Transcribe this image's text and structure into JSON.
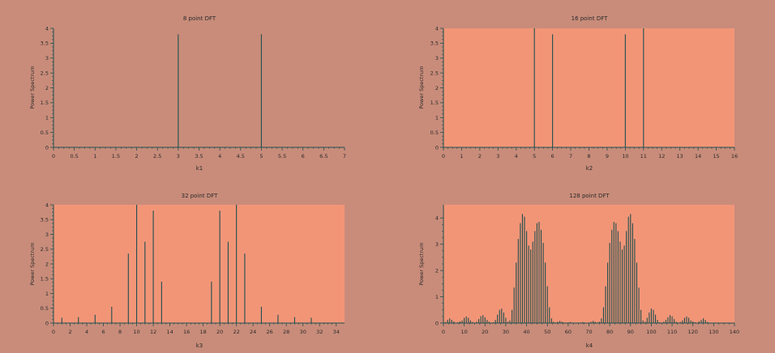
{
  "colors": {
    "figure_bg": "#c98c7a",
    "plot_bg_plain": "#c98c7a",
    "plot_bg_filled": "#f29577",
    "axis": "#1f4f4f",
    "stem": "#1f4f4f"
  },
  "chart_data": [
    {
      "type": "bar",
      "title": "8 point DFT",
      "xlabel": "k1",
      "ylabel": "Power Spectrum",
      "xlim": [
        0,
        7
      ],
      "ylim": [
        0,
        4
      ],
      "xticks": [
        0,
        0.5,
        1,
        1.5,
        2,
        2.5,
        3,
        3.5,
        4,
        4.5,
        5,
        5.5,
        6,
        6.5,
        7
      ],
      "yticks": [
        0,
        0.5,
        1,
        1.5,
        2,
        2.5,
        3,
        3.5,
        4
      ],
      "filled_background": false,
      "x": [
        0,
        1,
        2,
        3,
        4,
        5,
        6,
        7
      ],
      "values": [
        0,
        0,
        0,
        3.8,
        0,
        3.8,
        0,
        0
      ]
    },
    {
      "type": "bar",
      "title": "16 point DFT",
      "xlabel": "k2",
      "ylabel": "Power Spectrum",
      "xlim": [
        0,
        16
      ],
      "ylim": [
        0,
        4
      ],
      "xticks": [
        0,
        1,
        2,
        3,
        4,
        5,
        6,
        7,
        8,
        9,
        10,
        11,
        12,
        13,
        14,
        15,
        16
      ],
      "yticks": [
        0,
        0.5,
        1,
        1.5,
        2,
        2.5,
        3,
        3.5,
        4
      ],
      "filled_background": true,
      "x": [
        0,
        1,
        2,
        3,
        4,
        5,
        6,
        7,
        8,
        9,
        10,
        11,
        12,
        13,
        14,
        15
      ],
      "values": [
        0,
        0,
        0,
        0,
        0,
        4.0,
        3.8,
        0,
        0,
        0,
        3.8,
        4.0,
        0,
        0,
        0,
        0
      ]
    },
    {
      "type": "bar",
      "title": "32 point DFT",
      "xlabel": "k3",
      "ylabel": "Power Spectrum",
      "xlim": [
        0,
        35
      ],
      "ylim": [
        0,
        4
      ],
      "xticks": [
        0,
        2,
        4,
        6,
        8,
        10,
        12,
        14,
        16,
        18,
        20,
        22,
        24,
        26,
        28,
        30,
        32,
        34
      ],
      "yticks": [
        0,
        0.5,
        1,
        1.5,
        2,
        2.5,
        3,
        3.5,
        4
      ],
      "filled_background": true,
      "x": [
        0,
        1,
        2,
        3,
        4,
        5,
        6,
        7,
        8,
        9,
        10,
        11,
        12,
        13,
        14,
        15,
        16,
        17,
        18,
        19,
        20,
        21,
        22,
        23,
        24,
        25,
        26,
        27,
        28,
        29,
        30,
        31
      ],
      "values": [
        0,
        0.18,
        0,
        0.2,
        0,
        0.28,
        0,
        0.55,
        0,
        2.35,
        4.0,
        2.75,
        3.8,
        1.4,
        0,
        0,
        0,
        0,
        0,
        1.4,
        3.8,
        2.75,
        4.0,
        2.35,
        0,
        0.55,
        0,
        0.28,
        0,
        0.2,
        0,
        0.18
      ]
    },
    {
      "type": "bar",
      "title": "128 point DFT",
      "xlabel": "k4",
      "ylabel": "Power Spectrum",
      "xlim": [
        0,
        140
      ],
      "ylim": [
        0,
        4.5
      ],
      "xticks": [
        0,
        10,
        20,
        30,
        40,
        50,
        60,
        70,
        80,
        90,
        100,
        110,
        120,
        130,
        140
      ],
      "yticks": [
        0,
        1,
        2,
        3,
        4
      ],
      "filled_background": true,
      "x": [
        0,
        1,
        2,
        3,
        4,
        5,
        6,
        7,
        8,
        9,
        10,
        11,
        12,
        13,
        14,
        15,
        16,
        17,
        18,
        19,
        20,
        21,
        22,
        23,
        24,
        25,
        26,
        27,
        28,
        29,
        30,
        31,
        32,
        33,
        34,
        35,
        36,
        37,
        38,
        39,
        40,
        41,
        42,
        43,
        44,
        45,
        46,
        47,
        48,
        49,
        50,
        51,
        52,
        53,
        54,
        55,
        56,
        57,
        58,
        59,
        60,
        61,
        62,
        63,
        64,
        65,
        66,
        67,
        68,
        69,
        70,
        71,
        72,
        73,
        74,
        75,
        76,
        77,
        78,
        79,
        80,
        81,
        82,
        83,
        84,
        85,
        86,
        87,
        88,
        89,
        90,
        91,
        92,
        93,
        94,
        95,
        96,
        97,
        98,
        99,
        100,
        101,
        102,
        103,
        104,
        105,
        106,
        107,
        108,
        109,
        110,
        111,
        112,
        113,
        114,
        115,
        116,
        117,
        118,
        119,
        120,
        121,
        122,
        123,
        124,
        125,
        126,
        127
      ],
      "values": [
        0,
        0.04,
        0.12,
        0.18,
        0.12,
        0.06,
        0,
        0.03,
        0.06,
        0.1,
        0.2,
        0.25,
        0.2,
        0.1,
        0.04,
        0,
        0.05,
        0.15,
        0.26,
        0.3,
        0.22,
        0.12,
        0.05,
        0,
        0.03,
        0.12,
        0.32,
        0.5,
        0.55,
        0.4,
        0.2,
        0.05,
        0.1,
        0.5,
        1.35,
        2.3,
        3.2,
        3.8,
        4.15,
        4.05,
        3.5,
        2.95,
        2.8,
        3.1,
        3.5,
        3.8,
        3.85,
        3.55,
        3.05,
        2.3,
        1.4,
        0.6,
        0.18,
        0.05,
        0.02,
        0.05,
        0.08,
        0.05,
        0.02,
        0,
        0.02,
        0.04,
        0.02,
        0,
        0,
        0,
        0.02,
        0.04,
        0.02,
        0,
        0.02,
        0.05,
        0.08,
        0.05,
        0.02,
        0.05,
        0.18,
        0.6,
        1.4,
        2.3,
        3.05,
        3.55,
        3.85,
        3.8,
        3.5,
        3.1,
        2.8,
        2.95,
        3.5,
        4.05,
        4.15,
        3.8,
        3.2,
        2.3,
        1.35,
        0.5,
        0.1,
        0.05,
        0.2,
        0.4,
        0.55,
        0.5,
        0.32,
        0.12,
        0.03,
        0,
        0.05,
        0.12,
        0.22,
        0.3,
        0.26,
        0.15,
        0.05,
        0,
        0.04,
        0.1,
        0.2,
        0.25,
        0.2,
        0.1,
        0.06,
        0.03,
        0,
        0.06,
        0.12,
        0.18,
        0.12,
        0.04
      ]
    }
  ]
}
